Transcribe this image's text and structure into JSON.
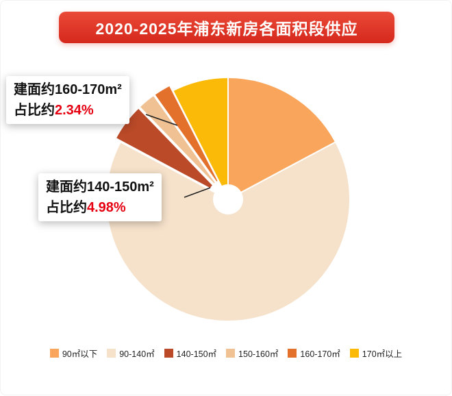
{
  "title": "2020-2025年浦东新房各面积段供应",
  "theme": {
    "banner_bg": "#d5281c",
    "banner_text": "#ffffff",
    "highlight_red": "#e60012"
  },
  "chart_data": {
    "type": "pie",
    "title": "2020-2025年浦东新房各面积段供应",
    "direction": "clockwise",
    "start_angle_deg": 0,
    "donut_hole": true,
    "legend_position": "bottom",
    "slices": [
      {
        "id": "under-90",
        "label": "90㎡以下",
        "value": 17.2,
        "color": "#F9A55B",
        "exploded": false
      },
      {
        "id": "90-140",
        "label": "90-140㎡",
        "value": 65.6,
        "color": "#F6E2CB",
        "exploded": false
      },
      {
        "id": "140-150",
        "label": "140-150㎡",
        "value": 4.98,
        "color": "#BA4A28",
        "exploded": true
      },
      {
        "id": "150-160",
        "label": "150-160㎡",
        "value": 2.4,
        "color": "#F0C193",
        "exploded": true
      },
      {
        "id": "160-170",
        "label": "160-170㎡",
        "value": 2.34,
        "color": "#E4712B",
        "exploded": true
      },
      {
        "id": "over-170",
        "label": "170㎡以上",
        "value": 7.48,
        "color": "#FBBA07",
        "exploded": false
      }
    ],
    "annotations": [
      {
        "line1": "建面约160-170m²",
        "prefix": "占比约",
        "value": "2.34%",
        "target": "160-170㎡"
      },
      {
        "line1": "建面约140-150m²",
        "prefix": "占比约",
        "value": "4.98%",
        "target": "140-150㎡"
      }
    ]
  }
}
